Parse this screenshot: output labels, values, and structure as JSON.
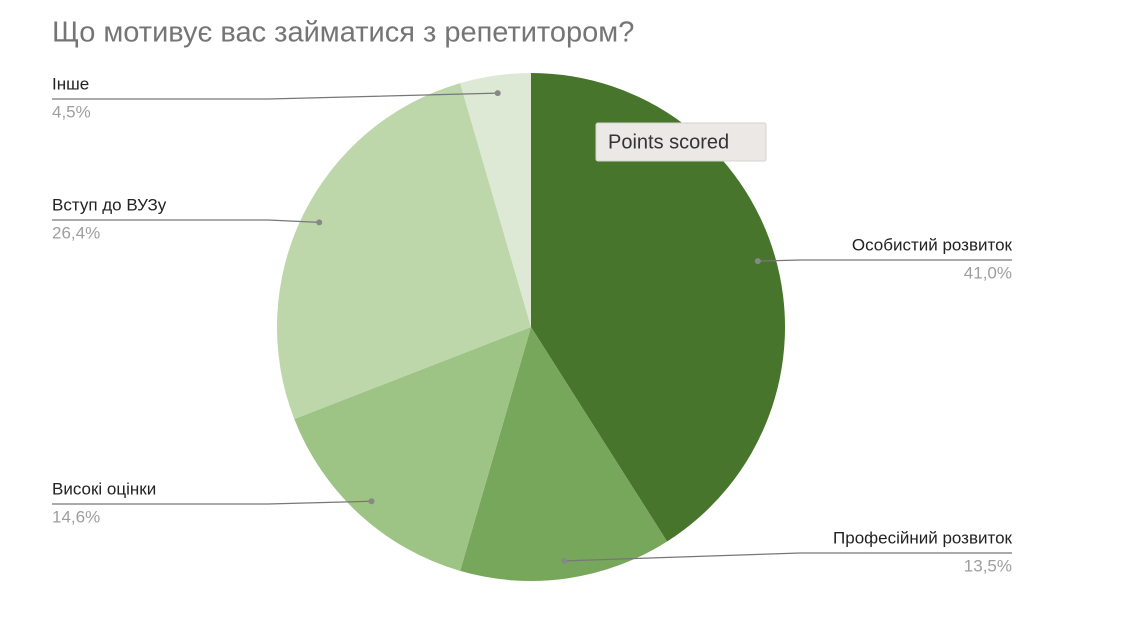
{
  "chart_data": {
    "type": "pie",
    "title": "Що мотивує вас займатися з репетитором?",
    "tooltip": "Points scored",
    "categories": [
      "Особистий розвиток",
      "Професійний розвиток",
      "Високі оцінки",
      "Вступ до ВУЗу",
      "Інше"
    ],
    "values": [
      41.0,
      13.5,
      14.6,
      26.4,
      4.5
    ],
    "value_labels": [
      "41,0%",
      "13,5%",
      "14,6%",
      "26,4%",
      "4,5%"
    ],
    "colors": [
      "#46752b",
      "#77a75a",
      "#9dc485",
      "#bdd7ab",
      "#dde9d5"
    ]
  }
}
